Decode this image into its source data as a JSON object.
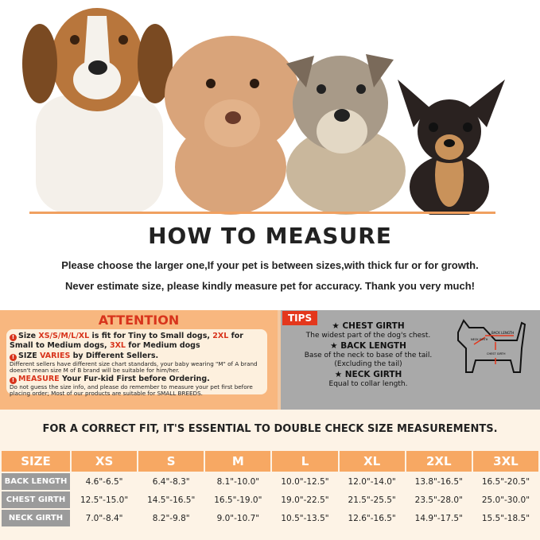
{
  "header": {
    "title": "HOW TO MEASURE",
    "lines": [
      "Please choose the larger one,If your pet is between sizes,with thick fur or for growth.",
      "Never estimate size, please kindly measure pet for accuracy. Thank you very much!"
    ]
  },
  "attention": {
    "title": "ATTENTION",
    "item1": {
      "a": "Size ",
      "b": "XS/S/M/L/XL",
      "c": " is fit for Tiny to Small dogs,  ",
      "d": "2XL",
      "e": " for Small to Medium dogs, ",
      "f": "3XL",
      "g": " for Medium dogs"
    },
    "item2": {
      "a": "SIZE ",
      "b": "VARIES",
      "c": " by Different Sellers.",
      "detail": "Different sellers have different size chart standards, your baby wearing \"M\" of A brand doesn't mean size M of B brand will be suitable for him/her."
    },
    "item3": {
      "a": "MEASURE",
      "b": " Your Fur-kid First before Ordering.",
      "detail": "Do not guess the size info,  and please do remember to measure your pet first before placing order; Most of our products are suitable for SMALL BREEDS."
    }
  },
  "tips": {
    "badge": "TIPS",
    "items": [
      {
        "title": "CHEST GIRTH",
        "desc": "The widest part of the dog's chest."
      },
      {
        "title": "BACK LENGTH",
        "desc": "Base of the neck to base of the tail. (Excluding the tail)"
      },
      {
        "title": "NECK GIRTH",
        "desc": "Equal to collar length."
      }
    ],
    "diagram": {
      "back": "BACK LENGTH",
      "neck": "NECK GIRTH",
      "chest": "CHEST GIRTH"
    }
  },
  "fit_note": "FOR A CORRECT FIT, IT'S ESSENTIAL TO DOUBLE CHECK SIZE MEASUREMENTS.",
  "table": {
    "headers": [
      "SIZE",
      "XS",
      "S",
      "M",
      "L",
      "XL",
      "2XL",
      "3XL"
    ],
    "rows": [
      {
        "label": "BACK LENGTH",
        "values": [
          "4.6\"-6.5\"",
          "6.4\"-8.3\"",
          "8.1\"-10.0\"",
          "10.0\"-12.5\"",
          "12.0\"-14.0\"",
          "13.8\"-16.5\"",
          "16.5\"-20.5\""
        ]
      },
      {
        "label": "CHEST GIRTH",
        "values": [
          "12.5\"-15.0\"",
          "14.5\"-16.5\"",
          "16.5\"-19.0\"",
          "19.0\"-22.5\"",
          "21.5\"-25.5\"",
          "23.5\"-28.0\"",
          "25.0\"-30.0\""
        ]
      },
      {
        "label": "NECK GIRTH",
        "values": [
          "7.0\"-8.4\"",
          "8.2\"-9.8\"",
          "9.0\"-10.7\"",
          "10.5\"-13.5\"",
          "12.6\"-16.5\"",
          "14.9\"-17.5\"",
          "15.5\"-18.5\""
        ]
      }
    ]
  },
  "colors": {
    "orange": "#f7a863",
    "red": "#d8341c",
    "gray": "#a9a9a9",
    "cream": "#fdf3e6"
  }
}
